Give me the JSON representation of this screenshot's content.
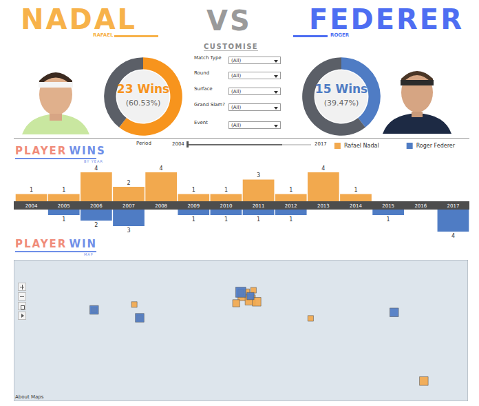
{
  "header": {
    "left_name": "NADAL",
    "left_first": "RAFAEL",
    "versus": "VS",
    "right_name": "FEDERER",
    "right_first": "ROGER",
    "left_color": "#F7B24A",
    "right_color": "#4E6EF2"
  },
  "filters": {
    "title": "CUSTOMISE",
    "items": [
      {
        "label": "Match Type",
        "value": "(All)"
      },
      {
        "label": "Round",
        "value": "(All)"
      },
      {
        "label": "Surface",
        "value": "(All)"
      },
      {
        "label": "Grand Slam?",
        "value": "(All)"
      },
      {
        "label": "Event",
        "value": "(All)"
      }
    ],
    "period": {
      "label": "Period",
      "start": "2004",
      "end": "2017"
    }
  },
  "chart_data": [
    {
      "type": "donut",
      "categories": [
        "Rafael Nadal",
        "Roger Federer"
      ],
      "values": [
        23,
        15
      ],
      "colors": [
        "#F7941D",
        "#5B5F67"
      ],
      "annotations": [
        "23 Wins",
        "(60.53%)"
      ]
    },
    {
      "type": "donut",
      "categories": [
        "Roger Federer",
        "Rafael Nadal"
      ],
      "values": [
        15,
        23
      ],
      "colors": [
        "#4F7CC4",
        "#5B5F67"
      ],
      "annotations": [
        "15 Wins",
        "(39.47%)"
      ]
    },
    {
      "type": "bar",
      "title": "PLAYER WINS",
      "subtitle": "BY YEAR",
      "categories": [
        "2004",
        "2005",
        "2006",
        "2007",
        "2008",
        "2009",
        "2010",
        "2011",
        "2012",
        "2013",
        "2014",
        "2015",
        "2016",
        "2017"
      ],
      "series": [
        {
          "name": "Rafael Nadal",
          "color": "#F2A94E",
          "values": [
            1,
            1,
            4,
            2,
            4,
            1,
            1,
            3,
            1,
            4,
            1,
            null,
            null,
            null
          ]
        },
        {
          "name": "Roger Federer",
          "color": "#4F7CC4",
          "values": [
            null,
            1,
            2,
            3,
            null,
            1,
            1,
            1,
            1,
            null,
            null,
            1,
            null,
            4
          ]
        }
      ],
      "ylim": [
        0,
        4
      ],
      "data_labels": true,
      "tick_labels": "x",
      "legend": "top-right"
    },
    {
      "type": "scatter",
      "title": "PLAYER WIN",
      "subtitle": "MAP",
      "series": [
        {
          "name": "Rafael Nadal",
          "color": "#F2A94E",
          "marker": "square",
          "x": [
            2.3,
            7.4,
            12.5,
            -3.7,
            10.0,
            -0.1,
            145.0,
            -80.2,
            -116.3,
            -84.5,
            55.3
          ],
          "y": [
            48.9,
            43.7,
            41.9,
            40.4,
            53.5,
            51.5,
            -37.8,
            25.8,
            33.7,
            39.1,
            25.2
          ],
          "sizes": [
            5,
            4,
            3,
            2,
            1,
            1,
            3,
            1,
            1,
            1,
            1
          ]
        },
        {
          "name": "Roger Federer",
          "color": "#4F7CC4",
          "marker": "square",
          "x": [
            121.5,
            -116.3,
            -80.2,
            -0.1,
            7.6
          ],
          "y": [
            31.2,
            33.7,
            25.8,
            51.5,
            47.6
          ],
          "sizes": [
            3,
            3,
            3,
            4,
            2
          ]
        }
      ],
      "xlim": [
        -180,
        180
      ],
      "ylim": [
        -58,
        84
      ],
      "tick_labels": false,
      "footer": "About Maps"
    }
  ]
}
